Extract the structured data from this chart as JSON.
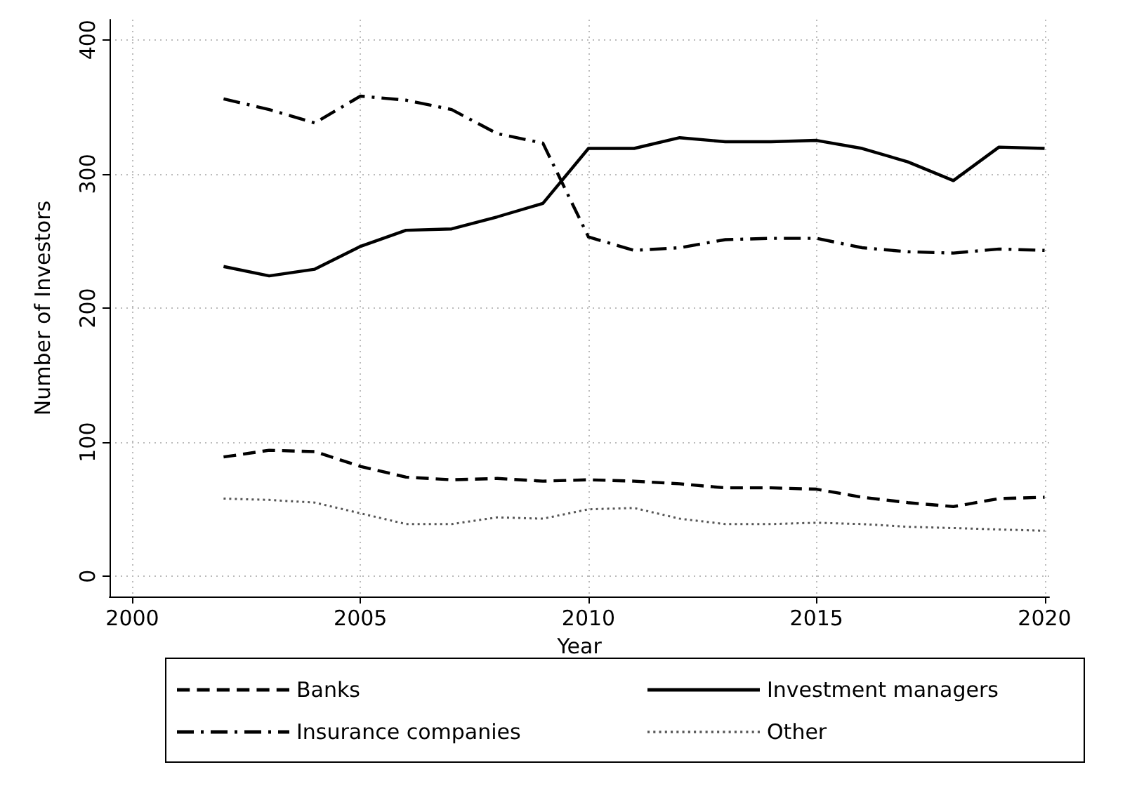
{
  "chart_data": {
    "type": "line",
    "xlabel": "Year",
    "ylabel": "Number of Investors",
    "x": [
      2002,
      2003,
      2004,
      2005,
      2006,
      2007,
      2008,
      2009,
      2010,
      2011,
      2012,
      2013,
      2014,
      2015,
      2016,
      2017,
      2018,
      2019,
      2020
    ],
    "series": [
      {
        "name": "Banks",
        "color": "#000000",
        "line_style": "dashed",
        "values": [
          89,
          94,
          93,
          82,
          74,
          72,
          73,
          71,
          72,
          71,
          69,
          66,
          66,
          65,
          59,
          55,
          52,
          58,
          59
        ]
      },
      {
        "name": "Investment managers",
        "color": "#000000",
        "line_style": "solid",
        "values": [
          231,
          224,
          229,
          246,
          258,
          259,
          268,
          278,
          319,
          319,
          327,
          324,
          324,
          325,
          319,
          309,
          295,
          320,
          319
        ]
      },
      {
        "name": "Insurance companies",
        "color": "#000000",
        "line_style": "dashdot",
        "values": [
          356,
          348,
          338,
          358,
          355,
          348,
          330,
          323,
          253,
          243,
          245,
          251,
          252,
          252,
          245,
          242,
          241,
          244,
          243
        ]
      },
      {
        "name": "Other",
        "color": "#555555",
        "line_style": "dotted",
        "values": [
          58,
          57,
          55,
          47,
          39,
          39,
          44,
          43,
          50,
          51,
          43,
          39,
          39,
          40,
          39,
          37,
          36,
          35,
          34
        ]
      }
    ],
    "xlim": [
      1999.5,
      2020.1
    ],
    "xticks": [
      2000,
      2005,
      2010,
      2015,
      2020
    ],
    "ylim": [
      -15,
      415
    ],
    "yticks": [
      0,
      100,
      200,
      300,
      400
    ],
    "grid": true,
    "legend": "bottom",
    "marker": "none"
  }
}
